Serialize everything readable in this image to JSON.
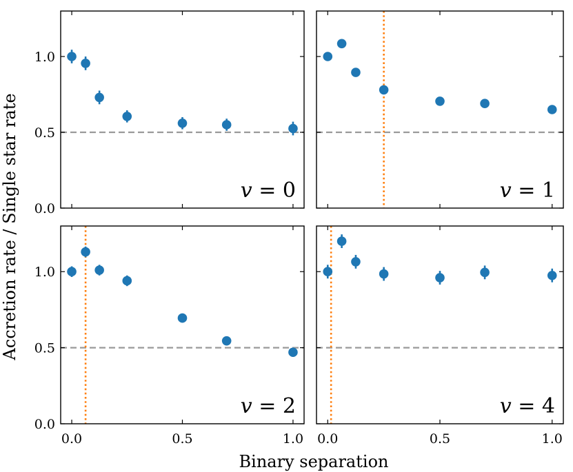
{
  "chart_data": {
    "type": "scatter",
    "xlabel": "Binary separation",
    "ylabel": "Accretion rate / Single star rate",
    "xlim": [
      -0.05,
      1.05
    ],
    "ylim": [
      0.0,
      1.3
    ],
    "xticks": [
      0.0,
      0.5,
      1.0
    ],
    "xtick_labels": [
      "0.0",
      "0.5",
      "1.0"
    ],
    "yticks": [
      0.0,
      0.5,
      1.0
    ],
    "ytick_labels": [
      "0.0",
      "0.5",
      "1.0"
    ],
    "reference_line": 0.5,
    "colors": {
      "points": "#1f77b4",
      "reference": "#999999",
      "marker_line": "#ff7f0e"
    },
    "panels": [
      {
        "label_var": "v",
        "label_rest": " = 0",
        "vline": null,
        "x": [
          0.0,
          0.0625,
          0.125,
          0.25,
          0.5,
          0.7,
          1.0
        ],
        "y": [
          1.0,
          0.955,
          0.73,
          0.605,
          0.56,
          0.55,
          0.525
        ],
        "yerr": [
          0.045,
          0.045,
          0.045,
          0.04,
          0.04,
          0.04,
          0.045
        ]
      },
      {
        "label_var": "v",
        "label_rest": " = 1",
        "vline": 0.25,
        "x": [
          0.0,
          0.0625,
          0.125,
          0.25,
          0.5,
          0.7,
          1.0
        ],
        "y": [
          1.0,
          1.085,
          0.895,
          0.78,
          0.705,
          0.69,
          0.65
        ],
        "yerr": [
          0.01,
          0.01,
          0.01,
          0.01,
          0.01,
          0.01,
          0.01
        ]
      },
      {
        "label_var": "v",
        "label_rest": " = 2",
        "vline": 0.0625,
        "x": [
          0.0,
          0.0625,
          0.125,
          0.25,
          0.5,
          0.7,
          1.0
        ],
        "y": [
          1.0,
          1.13,
          1.01,
          0.94,
          0.695,
          0.545,
          0.47
        ],
        "yerr": [
          0.035,
          0.035,
          0.035,
          0.035,
          0.03,
          0.03,
          0.03
        ]
      },
      {
        "label_var": "v",
        "label_rest": " = 4",
        "vline": 0.015,
        "x": [
          0.0,
          0.0625,
          0.125,
          0.25,
          0.5,
          0.7,
          1.0
        ],
        "y": [
          1.0,
          1.2,
          1.065,
          0.985,
          0.96,
          0.995,
          0.975
        ],
        "yerr": [
          0.045,
          0.045,
          0.045,
          0.045,
          0.045,
          0.045,
          0.045
        ]
      }
    ]
  }
}
